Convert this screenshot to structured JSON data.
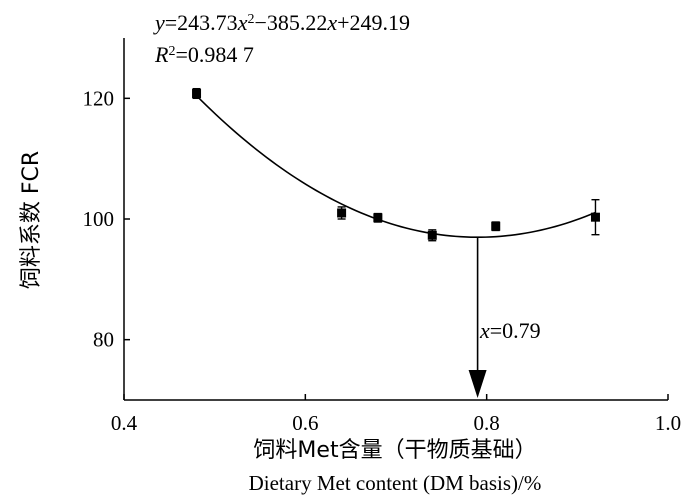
{
  "chart_data": {
    "type": "scatter",
    "title": "",
    "xlabel_cn": "饲料Met含量（干物质基础）",
    "xlabel_en": "Dietary Met content (DM basis)/%",
    "ylabel": "饲料系数  FCR",
    "xlim": [
      0.4,
      1.0
    ],
    "ylim": [
      70,
      130
    ],
    "x_ticks": [
      "0.4",
      "0.6",
      "0.8",
      "1.0"
    ],
    "y_ticks": [
      "80",
      "100",
      "120"
    ],
    "x_tick_values": [
      0.4,
      0.6,
      0.8,
      1.0
    ],
    "y_tick_values": [
      80,
      100,
      120
    ],
    "grid": false,
    "points": [
      {
        "x": 0.48,
        "y": 120.8,
        "err": 0.8
      },
      {
        "x": 0.64,
        "y": 101.0,
        "err": 1.0
      },
      {
        "x": 0.68,
        "y": 100.2,
        "err": 0.7
      },
      {
        "x": 0.74,
        "y": 97.3,
        "err": 0.9
      },
      {
        "x": 0.81,
        "y": 98.8,
        "err": 0.7
      },
      {
        "x": 0.92,
        "y": 100.3,
        "err": 2.9
      }
    ],
    "fit": {
      "a": 243.73,
      "b": -385.22,
      "c": 249.19,
      "x_range": [
        0.48,
        0.92
      ]
    },
    "equation_parts": {
      "y": "y",
      "eq1": "=243.73",
      "x1": "x",
      "sup": "2",
      "eq2": "−385.22",
      "x2": "x",
      "eq3": "+249.19"
    },
    "r2_parts": {
      "R": "R",
      "sup": "2",
      "val": "=0.984 7"
    },
    "annotation": {
      "x_value": 0.79,
      "x_label": "x",
      "val": "=0.79"
    }
  }
}
